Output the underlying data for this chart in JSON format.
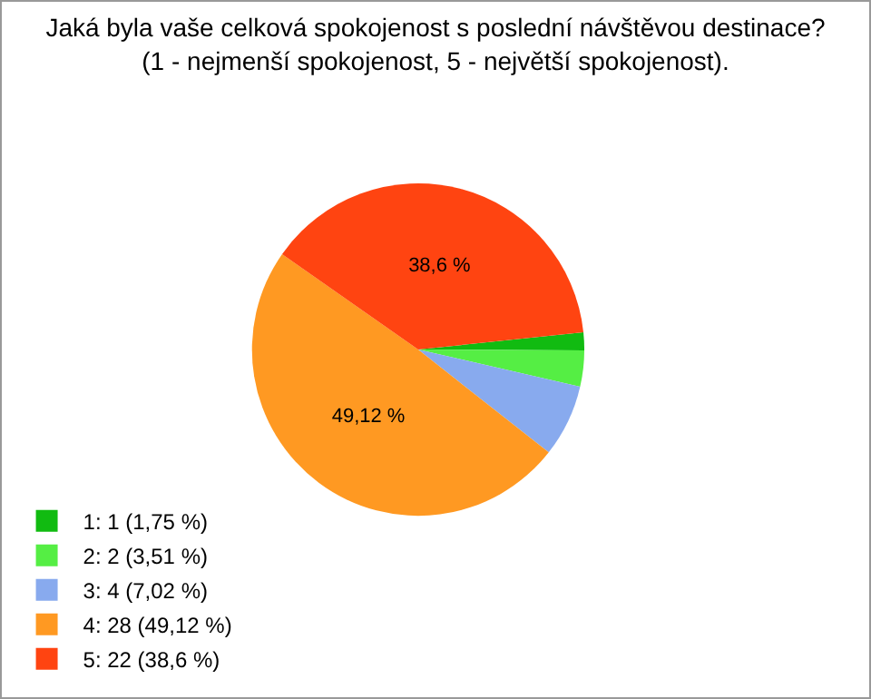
{
  "chart_data": {
    "type": "pie",
    "title": "Jaká byla vaše celková spokojenost s poslední návštěvou destinace?\n(1 - nejmenší spokojenost, 5 - největší spokojenost).",
    "categories": [
      "1: 1 (1,75 %)",
      "2: 2 (3,51 %)",
      "3: 4 (7,02 %)",
      "4: 28 (49,12 %)",
      "5: 22 (38,6 %)"
    ],
    "values": [
      1.75,
      3.51,
      7.02,
      49.12,
      38.6
    ],
    "colors": [
      "#11bb11",
      "#55ee44",
      "#88aaee",
      "#ff9922",
      "#ff4411"
    ],
    "value_labels": [
      null,
      null,
      null,
      "49,12 %",
      "38,6 %"
    ],
    "legend": "bottom left"
  }
}
